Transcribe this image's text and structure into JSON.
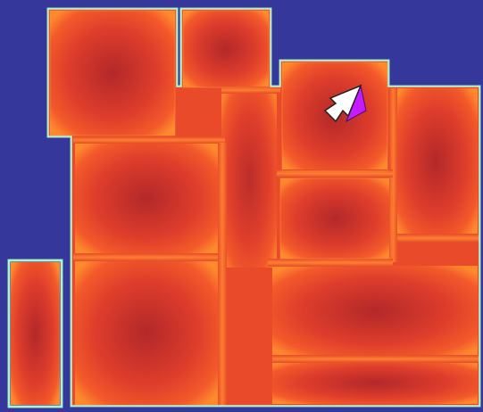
{
  "scene": {
    "background_color": "#35379a",
    "outline_color": "#9ff0c4",
    "heat_colors": {
      "core": "#b3282a",
      "mid": "#e0412a",
      "edge": "#f5622a",
      "hot_edge": "#ff8a2e"
    },
    "pointer": {
      "icon": "arrow-pointer-icon",
      "fill_color": "#ffffff",
      "accent_color": "#c21cff"
    }
  }
}
